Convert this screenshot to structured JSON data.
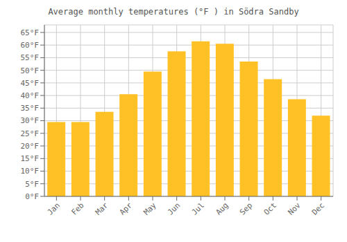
{
  "chart_data": {
    "type": "bar",
    "title": "Average monthly temperatures (°F ) in Södra Sandby",
    "categories": [
      "Jan",
      "Feb",
      "Mar",
      "Apr",
      "May",
      "Jun",
      "Jul",
      "Aug",
      "Sep",
      "Oct",
      "Nov",
      "Dec"
    ],
    "values": [
      29.5,
      29.5,
      33.5,
      40.5,
      49.5,
      57.5,
      61.5,
      60.5,
      53.5,
      46.5,
      38.5,
      32.0
    ],
    "color": "#FFC125",
    "ylim": [
      0,
      68
    ],
    "yticks": [
      {
        "value": 0,
        "label": "0°F"
      },
      {
        "value": 5,
        "label": "5°F"
      },
      {
        "value": 10,
        "label": "10°F"
      },
      {
        "value": 15,
        "label": "15°F"
      },
      {
        "value": 20,
        "label": "20°F"
      },
      {
        "value": 25,
        "label": "25°F"
      },
      {
        "value": 30,
        "label": "30°F"
      },
      {
        "value": 35,
        "label": "35°F"
      },
      {
        "value": 40,
        "label": "40°F"
      },
      {
        "value": 45,
        "label": "45°F"
      },
      {
        "value": 50,
        "label": "50°F"
      },
      {
        "value": 55,
        "label": "55°F"
      },
      {
        "value": 60,
        "label": "60°F"
      },
      {
        "value": 65,
        "label": "65°F"
      }
    ],
    "grid": true
  }
}
